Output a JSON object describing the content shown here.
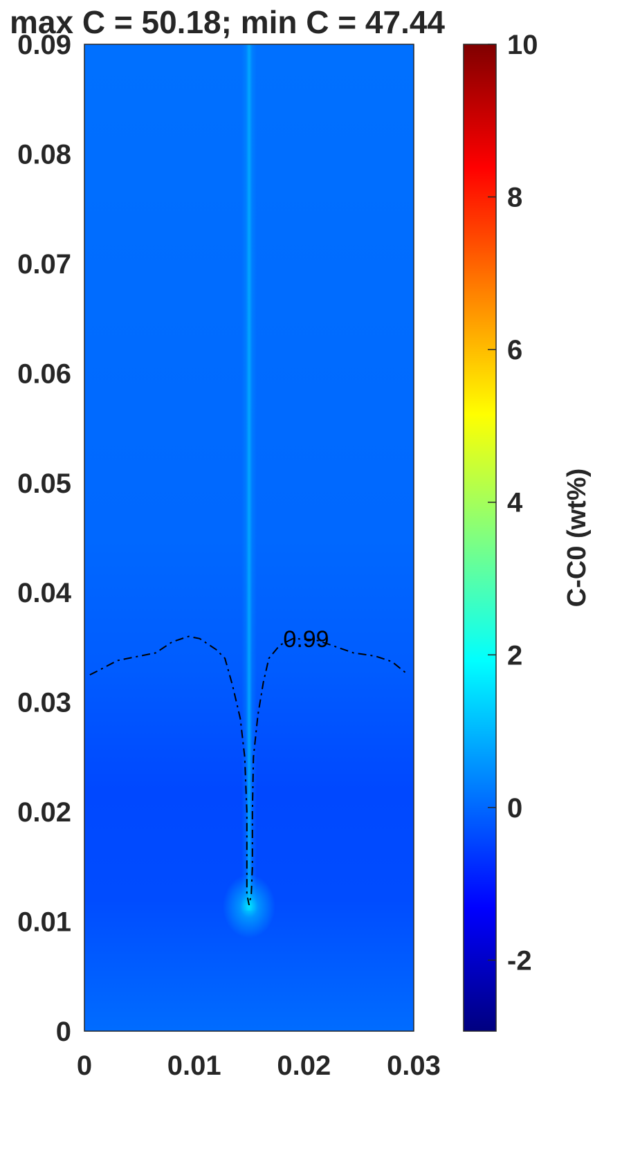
{
  "chart_data": {
    "type": "heatmap",
    "title": "max C = 50.18; min C = 47.44",
    "xlabel": "",
    "ylabel": "",
    "xlim": [
      0,
      0.03
    ],
    "ylim": [
      0,
      0.09
    ],
    "x_ticks": [
      "0",
      "0.01",
      "0.02",
      "0.03"
    ],
    "y_ticks": [
      "0",
      "0.01",
      "0.02",
      "0.03",
      "0.04",
      "0.05",
      "0.06",
      "0.07",
      "0.08",
      "0.09"
    ],
    "colorbar": {
      "label": "C-C0 (wt%)",
      "range": [
        -2.93,
        10
      ],
      "colormap": "jet",
      "ticks": [
        "-2",
        "0",
        "2",
        "4",
        "6",
        "8",
        "10"
      ]
    },
    "field": {
      "background_value": 0.1,
      "lower_region_value": -0.4,
      "channel_x": 0.015,
      "channel_value_top": 0.9,
      "channel_value_bottom": 1.6,
      "channel_root_y": 0.011
    },
    "contour": {
      "level_label": "0.99",
      "style": "dash-dot",
      "points": [
        [
          0.0005,
          0.0325
        ],
        [
          0.0015,
          0.033
        ],
        [
          0.003,
          0.0338
        ],
        [
          0.005,
          0.0342
        ],
        [
          0.0065,
          0.0345
        ],
        [
          0.008,
          0.0355
        ],
        [
          0.0095,
          0.036
        ],
        [
          0.0105,
          0.0358
        ],
        [
          0.012,
          0.0348
        ],
        [
          0.0128,
          0.034
        ],
        [
          0.0135,
          0.0315
        ],
        [
          0.0142,
          0.0285
        ],
        [
          0.0146,
          0.025
        ],
        [
          0.0148,
          0.02
        ],
        [
          0.0148,
          0.015
        ],
        [
          0.0148,
          0.0125
        ],
        [
          0.015,
          0.0115
        ],
        [
          0.0152,
          0.0125
        ],
        [
          0.0153,
          0.015
        ],
        [
          0.0153,
          0.02
        ],
        [
          0.0154,
          0.025
        ],
        [
          0.0158,
          0.0288
        ],
        [
          0.0163,
          0.0318
        ],
        [
          0.0168,
          0.034
        ],
        [
          0.0178,
          0.0352
        ],
        [
          0.019,
          0.0358
        ],
        [
          0.021,
          0.0357
        ],
        [
          0.0225,
          0.0352
        ],
        [
          0.0245,
          0.0345
        ],
        [
          0.0265,
          0.0342
        ],
        [
          0.028,
          0.0337
        ],
        [
          0.0295,
          0.0325
        ]
      ],
      "label_position": [
        0.0202,
        0.0358
      ]
    }
  }
}
